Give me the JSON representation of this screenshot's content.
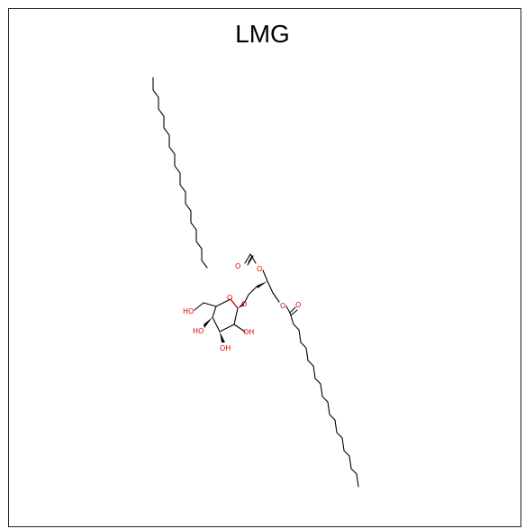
{
  "title": "LMG",
  "atoms": {
    "ester_o_upper": "O",
    "carbonyl_o_upper": "O",
    "ether_o": "O",
    "ester_o_lower": "O",
    "carbonyl_o_lower": "O",
    "ring_o": "O",
    "ch2oh": "HO",
    "oh_c4": "HO",
    "oh_c3": "OH",
    "oh_c2": "OH"
  },
  "colors": {
    "oxygen": "#e00000",
    "carbon_bond": "#000000"
  }
}
